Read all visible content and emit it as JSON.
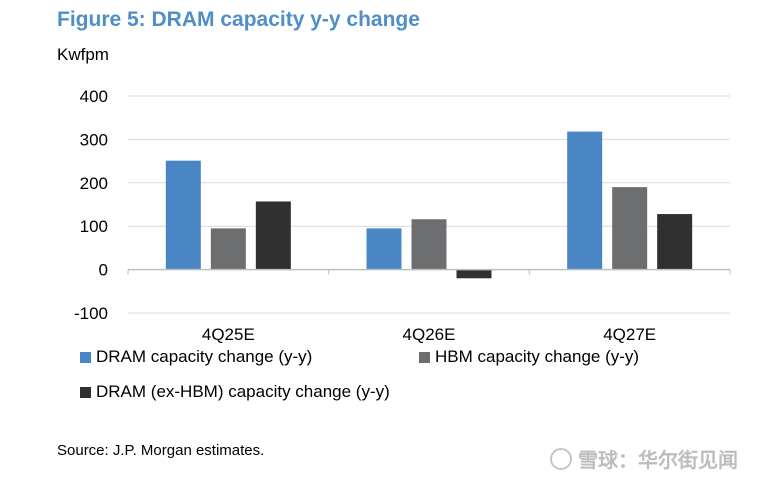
{
  "title": "Figure 5: DRAM capacity y-y change",
  "unit_label": "Kwfpm",
  "source": "Source: J.P. Morgan estimates.",
  "watermark": "雪球：华尔街见闻",
  "chart_data": {
    "type": "bar",
    "categories": [
      "4Q25E",
      "4Q26E",
      "4Q27E"
    ],
    "series": [
      {
        "name": "DRAM capacity change (y-y)",
        "color": "#4a86c5",
        "values": [
          251,
          95,
          318
        ]
      },
      {
        "name": "HBM capacity change (y-y)",
        "color": "#6d6e70",
        "values": [
          95,
          116,
          190
        ]
      },
      {
        "name": "DRAM (ex-HBM) capacity change (y-y)",
        "color": "#303030",
        "values": [
          157,
          -20,
          128
        ]
      }
    ],
    "ylim": [
      -100,
      400
    ],
    "yticks": [
      400,
      300,
      200,
      100,
      0,
      -100
    ],
    "ytick_labels": [
      "400",
      "300",
      "200",
      "100",
      "0",
      "-100"
    ],
    "grid": true,
    "legend_position": "bottom"
  }
}
